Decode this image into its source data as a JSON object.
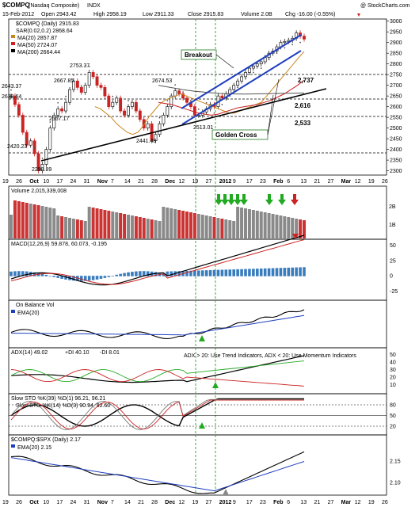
{
  "header": {
    "symbol": "$COMPQ",
    "name": "(Nasdaq Composite)",
    "exchange": "INDX",
    "date": "15-Feb-2012",
    "open": "Open 2943.42",
    "high": "High 2958.19",
    "low": "Low 2911.33",
    "close": "Close 2915.83",
    "volume": "Volume 2.0B",
    "chg": "Chg -16.00 (-0.55%)",
    "copyright": "@ StockCharts.com"
  },
  "legend": {
    "main": "$COMPQ (Daily) 2915.83",
    "sar": "SAR(0.02,0.2) 2868.64",
    "ma20": "MA(20) 2857.87",
    "ma50": "MA(50) 2724.07",
    "ma200": "MA(200) 2664.44"
  },
  "annotations": {
    "breakout": "Breakout",
    "golden_cross": "Golden Cross",
    "level_2737": "2,737",
    "level_2616": "2,616",
    "level_2533": "2,533",
    "p2753": "2753.37",
    "p2643": "2643.37",
    "p2630": "2630.64",
    "p2667": "2667.85",
    "p2674": "2674.53",
    "p2557": "2557.17",
    "p2441": "2441.48",
    "p2513": "2513.01",
    "p2420": "2420.23",
    "p2298": "2298.89"
  },
  "x_axis": {
    "ticks": [
      "19",
      "26",
      "Oct",
      "10",
      "17",
      "24",
      "31",
      "Nov",
      "7",
      "14",
      "21",
      "28",
      "Dec",
      "12",
      "19",
      "27",
      "2012",
      "9",
      "17",
      "23",
      "Feb",
      "6",
      "13",
      "21",
      "27",
      "Mar",
      "12",
      "19",
      "26"
    ]
  },
  "panels": {
    "volume_label": "Volume 2,015,339,008",
    "macd_label": "MACD(12,26,9) 59.878, 60.073, -0.195",
    "obv_label": "On Balance Vol",
    "obv_ema": "EMA(20)",
    "adx_label": "ADX(14) 49.02",
    "adx_plus": "+DI 40.10",
    "adx_minus": "-DI 8.01",
    "adx_note": "ADX > 20: Use Trend Indicators, ADX < 20: Use Momentum Indicators",
    "slow_sto_39": "Slow STO %K(39) %D(1) 96.21, 96.21",
    "slow_sto_14": "Slow STO %K(14) %D(3) 90.94, 92.60",
    "ratio_label": "$COMPQ:$SPX (Daily) 2.17",
    "ratio_ema": "EMA(20) 2.15"
  },
  "colors": {
    "up": "#1f1f1f",
    "down": "#cc2222",
    "blue": "#1f3fbf",
    "green": "#22aa22",
    "grey": "#8a8a8a",
    "red": "#cc2222"
  },
  "chart_data": {
    "type": "line",
    "title": "$COMPQ (Nasdaq Composite) INDX",
    "subtitle": "15-Feb-2012",
    "y_ticks_main": [
      3000,
      2950,
      2900,
      2850,
      2800,
      2750,
      2700,
      2650,
      2600,
      2550,
      2500,
      2450,
      2400,
      2350,
      2300
    ],
    "ylim_main": [
      2280,
      3010
    ],
    "series": [
      {
        "name": "$COMPQ (Daily)",
        "values": [
          2650,
          2610,
          2560,
          2480,
          2420,
          2440,
          2380,
          2300,
          2330,
          2400,
          2500,
          2560,
          2590,
          2580,
          2620,
          2680,
          2720,
          2690,
          2667,
          2700,
          2760,
          2740,
          2700,
          2690,
          2650,
          2600,
          2620,
          2640,
          2580,
          2560,
          2600,
          2620,
          2580,
          2540,
          2500,
          2520,
          2441,
          2470,
          2520,
          2560,
          2600,
          2650,
          2674,
          2660,
          2640,
          2620,
          2600,
          2560,
          2560,
          2575,
          2590,
          2610,
          2600,
          2650,
          2640,
          2660,
          2680,
          2700,
          2720,
          2740,
          2760,
          2780,
          2790,
          2800,
          2810,
          2830,
          2850,
          2860,
          2880,
          2900,
          2905,
          2910,
          2920,
          2945,
          2930,
          2916
        ]
      },
      {
        "name": "MA(20)",
        "values": [
          2600,
          2590,
          2570,
          2550,
          2520,
          2500,
          2480,
          2470,
          2480,
          2510,
          2550,
          2580,
          2610,
          2630,
          2640,
          2650,
          2660,
          2650,
          2640,
          2630,
          2620,
          2610,
          2600,
          2590,
          2580,
          2570,
          2570,
          2580,
          2590,
          2600,
          2610,
          2620,
          2650,
          2680,
          2710,
          2740,
          2770,
          2800,
          2830,
          2858
        ]
      },
      {
        "name": "MA(50)",
        "values": [
          2620,
          2615,
          2610,
          2600,
          2590,
          2580,
          2570,
          2565,
          2560,
          2565,
          2575,
          2585,
          2595,
          2600,
          2605,
          2610,
          2620,
          2630,
          2645,
          2660,
          2680,
          2700,
          2724
        ]
      },
      {
        "name": "MA(200)",
        "values": [
          2700,
          2690,
          2680,
          2672,
          2667,
          2662,
          2660,
          2659,
          2660,
          2661,
          2662,
          2663,
          2664
        ]
      }
    ],
    "ratio": {
      "ylim": [
        2.07,
        2.2
      ],
      "y_ticks": [
        2.15,
        2.1
      ]
    },
    "macd_y_ticks": [
      50,
      25,
      0,
      -25
    ],
    "obv": {},
    "adx_y_ticks": [
      50,
      40,
      30,
      20,
      10
    ],
    "sto_y_ticks": [
      80,
      50,
      20
    ],
    "volume_y_ticks": [
      "2B",
      "1B"
    ]
  }
}
